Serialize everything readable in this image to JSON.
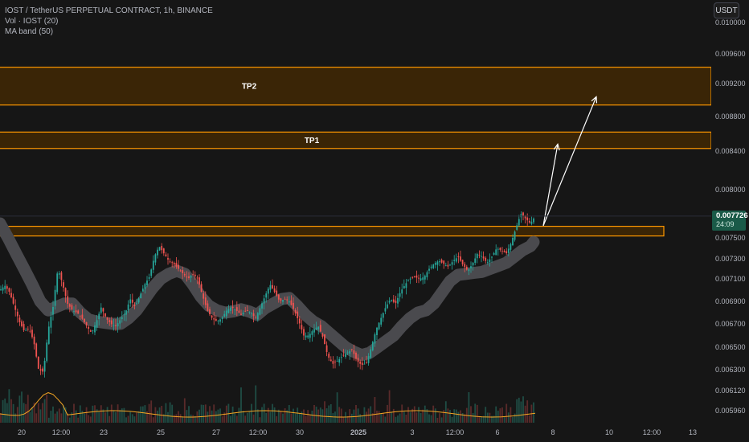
{
  "header": {
    "title": "IOST / TetherUS PERPETUAL CONTRACT, 1h, BINANCE",
    "indicators": [
      "Vol · IOST (20)",
      "MA band (50)"
    ]
  },
  "toolbar": {
    "unit_label": "USDT"
  },
  "last_price": {
    "value": "0.007726",
    "countdown": "24:09"
  },
  "colors": {
    "up": "#26a69a",
    "down": "#ef5350",
    "band": "#4a4a4e",
    "zone_fill": "#3a2506",
    "zone_stroke": "#ff9800",
    "arrow": "#ffffff",
    "volume_ma": "#f5a623",
    "price_tag": "#1a5a48",
    "background": "#161616"
  },
  "chart_data": {
    "type": "candlestick",
    "title": "IOST / TetherUS PERPETUAL CONTRACT, 1h, BINANCE",
    "y_axis": {
      "ticks": [
        "0.005960",
        "0.006120",
        "0.006300",
        "0.006500",
        "0.006700",
        "0.006900",
        "0.007100",
        "0.007300",
        "0.007500",
        "0.008000",
        "0.008400",
        "0.008800",
        "0.009200",
        "0.009600",
        "0.010000"
      ]
    },
    "x_axis": {
      "ticks": [
        "20",
        "12:00",
        "23",
        "25",
        "27",
        "12:00",
        "30",
        "2025",
        "3",
        "12:00",
        "6",
        "8",
        "10",
        "12:00",
        "13"
      ]
    },
    "price_path": {
      "x": [
        0,
        6,
        12,
        18,
        24,
        30,
        36,
        42,
        48,
        54,
        60,
        66,
        72,
        78,
        84,
        90,
        96,
        102,
        108,
        114,
        120,
        126,
        132,
        138,
        144,
        150,
        156,
        162,
        168,
        174,
        180,
        186,
        192,
        198,
        204,
        210,
        216,
        222,
        228,
        234,
        240,
        246,
        252,
        258,
        264,
        270,
        276,
        282,
        288,
        294,
        300,
        306,
        312,
        318,
        324,
        330,
        336,
        342,
        348,
        354,
        360,
        366,
        372,
        378,
        384,
        390,
        396,
        402,
        408,
        414,
        420,
        426,
        432,
        438,
        444,
        450,
        456,
        462,
        468,
        474,
        480,
        486,
        492,
        498,
        504,
        510,
        516,
        522,
        528,
        534,
        540,
        546,
        552,
        558,
        564,
        570,
        576,
        582,
        588,
        594,
        600,
        606,
        612,
        618,
        624,
        630,
        636,
        642,
        648,
        654,
        660,
        666
      ],
      "price": [
        0.007,
        0.00704,
        0.00698,
        0.00685,
        0.00672,
        0.00664,
        0.00666,
        0.00655,
        0.0063,
        0.00628,
        0.00665,
        0.00685,
        0.0072,
        0.00705,
        0.00688,
        0.00682,
        0.0068,
        0.00675,
        0.00668,
        0.00662,
        0.00672,
        0.00685,
        0.00675,
        0.0067,
        0.00668,
        0.00674,
        0.0068,
        0.00692,
        0.00685,
        0.00695,
        0.00705,
        0.00712,
        0.00732,
        0.00742,
        0.00735,
        0.00728,
        0.00725,
        0.0072,
        0.00715,
        0.0071,
        0.00715,
        0.0071,
        0.00695,
        0.00682,
        0.00675,
        0.00672,
        0.00675,
        0.00682,
        0.00685,
        0.00682,
        0.00678,
        0.00682,
        0.0068,
        0.00675,
        0.00685,
        0.00695,
        0.00705,
        0.00698,
        0.0069,
        0.00692,
        0.0069,
        0.00682,
        0.00672,
        0.0066,
        0.0066,
        0.00665,
        0.00668,
        0.00658,
        0.00642,
        0.00635,
        0.00638,
        0.00642,
        0.00645,
        0.00648,
        0.00638,
        0.00634,
        0.00636,
        0.0065,
        0.00665,
        0.00675,
        0.00685,
        0.00692,
        0.00688,
        0.00698,
        0.00705,
        0.0071,
        0.00712,
        0.0071,
        0.00712,
        0.0072,
        0.00725,
        0.00728,
        0.00725,
        0.00722,
        0.00728,
        0.00732,
        0.00724,
        0.00718,
        0.00725,
        0.00735,
        0.00732,
        0.00726,
        0.00732,
        0.0074,
        0.00738,
        0.00735,
        0.00745,
        0.0076,
        0.00775,
        0.0077,
        0.00765,
        0.007726
      ]
    },
    "ma_band": {
      "x": [
        0,
        10,
        20,
        30,
        40,
        50,
        60,
        70,
        80,
        90,
        100,
        110,
        120,
        130,
        140,
        150,
        160,
        170,
        180,
        190,
        200,
        210,
        220,
        230,
        240,
        250,
        260,
        270,
        280,
        290,
        300,
        310,
        320,
        330,
        340,
        350,
        360,
        370,
        380,
        390,
        400,
        410,
        420,
        430,
        440,
        450,
        460,
        470,
        480,
        490,
        500,
        510,
        520,
        530,
        540,
        550,
        560,
        570,
        580,
        590,
        600,
        610,
        620,
        630,
        640,
        650,
        660,
        664
      ],
      "price": [
        0.00765,
        0.0075,
        0.00735,
        0.0072,
        0.00705,
        0.0069,
        0.00682,
        0.00685,
        0.00688,
        0.00688,
        0.0068,
        0.00674,
        0.00672,
        0.00671,
        0.0067,
        0.0067,
        0.00675,
        0.00682,
        0.00692,
        0.00702,
        0.0071,
        0.00715,
        0.00718,
        0.00715,
        0.00705,
        0.00694,
        0.00686,
        0.00682,
        0.0068,
        0.00681,
        0.00683,
        0.00681,
        0.00678,
        0.00684,
        0.00688,
        0.00692,
        0.00693,
        0.00686,
        0.00678,
        0.00672,
        0.00668,
        0.00662,
        0.00656,
        0.0065,
        0.00646,
        0.00643,
        0.00645,
        0.0065,
        0.00655,
        0.0066,
        0.00668,
        0.00675,
        0.0068,
        0.00682,
        0.00688,
        0.00698,
        0.00708,
        0.00714,
        0.00715,
        0.00716,
        0.00717,
        0.0072,
        0.00723,
        0.00726,
        0.00732,
        0.00738,
        0.00742,
        0.00746
      ]
    },
    "zones": [
      {
        "label": "TP2",
        "top": 0.00942,
        "bottom": 0.00894
      },
      {
        "label": "TP1",
        "top": 0.00862,
        "bottom": 0.00843
      },
      {
        "label": "",
        "top": 0.00762,
        "bottom": 0.00752
      }
    ],
    "arrows": [
      {
        "from_x": 676,
        "from_price": 0.007626,
        "to_x": 694,
        "to_price": 0.00848
      },
      {
        "from_x": 676,
        "from_price": 0.007626,
        "to_x": 742,
        "to_price": 0.00904
      }
    ],
    "volume_ma_level": 0.3,
    "grid": false,
    "legend": "top-left"
  }
}
